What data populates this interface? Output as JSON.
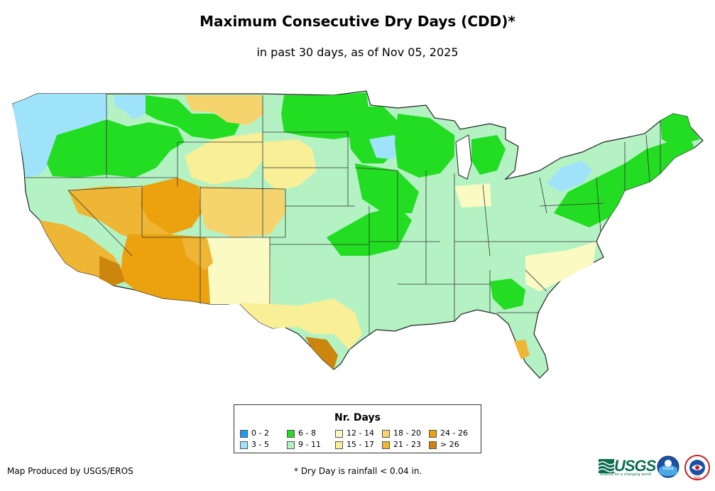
{
  "title": "Maximum Consecutive Dry Days (CDD)*",
  "subtitle": "in past 30 days, as of Nov 05, 2025",
  "legend": {
    "title": "Nr. Days",
    "items": [
      {
        "label": "0 - 2",
        "color": "#1e9cf0"
      },
      {
        "label": "3 - 5",
        "color": "#9ee3fa"
      },
      {
        "label": "6 - 8",
        "color": "#22dd22"
      },
      {
        "label": "9 - 11",
        "color": "#b4f2c4"
      },
      {
        "label": "12 - 14",
        "color": "#fafac2"
      },
      {
        "label": "15 - 17",
        "color": "#f8ef96"
      },
      {
        "label": "18 - 20",
        "color": "#f5d46e"
      },
      {
        "label": "21 - 23",
        "color": "#eeb634"
      },
      {
        "label": "24 - 26",
        "color": "#eca10f"
      },
      {
        "label": "> 26",
        "color": "#cc860e"
      }
    ]
  },
  "credit": "Map Produced by USGS/EROS",
  "footnote": "* Dry Day is rainfall < 0.04 in.",
  "logos": {
    "usgs": "USGS",
    "usgs_tagline": "science for a changing world",
    "noaa": "noaa",
    "nws": "NWS"
  },
  "map_regions": [
    {
      "name": "pacific-northwest",
      "category": "3 - 5"
    },
    {
      "name": "northern-rockies",
      "category": "6 - 8"
    },
    {
      "name": "northern-plains",
      "category": "6 - 8"
    },
    {
      "name": "great-basin",
      "category": "21 - 23"
    },
    {
      "name": "southern-california",
      "category": "21 - 23"
    },
    {
      "name": "arizona",
      "category": "21 - 23"
    },
    {
      "name": "south-texas",
      "category": "> 26"
    },
    {
      "name": "midwest",
      "category": "9 - 11"
    },
    {
      "name": "southeast",
      "category": "9 - 11"
    },
    {
      "name": "northeast",
      "category": "6 - 8"
    },
    {
      "name": "great-lakes",
      "category": "3 - 5"
    },
    {
      "name": "florida",
      "category": "9 - 11"
    }
  ]
}
